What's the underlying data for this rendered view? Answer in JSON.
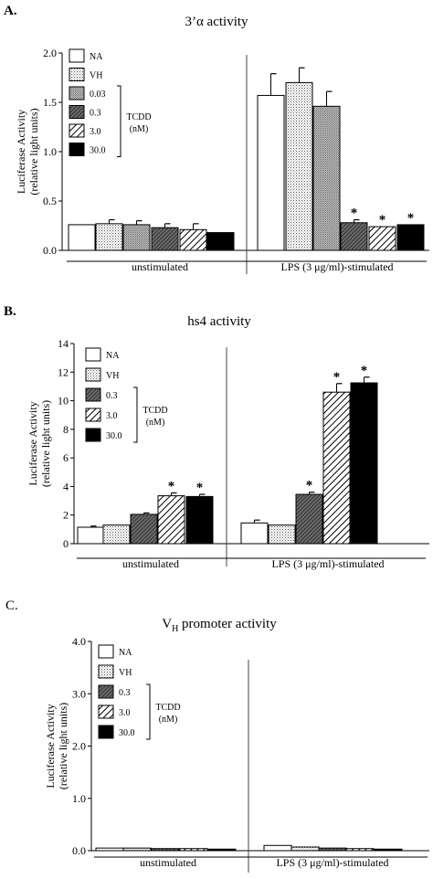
{
  "chart_data": [
    {
      "panel_label": "A.",
      "type": "bar",
      "title": "3’α activity",
      "ylabel_lines": [
        "Luciferase Activity",
        "(relative light units)"
      ],
      "ylim": [
        0,
        2.0
      ],
      "yticks": [
        "0.0",
        "0.5",
        "1.0",
        "1.5",
        "2.0"
      ],
      "groups": [
        "unstimulated",
        "LPS (3 μg/ml)-stimulated"
      ],
      "series": [
        {
          "name": "NA",
          "pattern": "white",
          "values": [
            0.26,
            1.57
          ],
          "errors": [
            0.0,
            0.22
          ],
          "sig": [
            false,
            false
          ]
        },
        {
          "name": "VH",
          "pattern": "dots",
          "values": [
            0.27,
            1.7
          ],
          "errors": [
            0.04,
            0.15
          ],
          "sig": [
            false,
            false
          ]
        },
        {
          "name": "0.03",
          "pattern": "dense",
          "values": [
            0.26,
            1.46
          ],
          "errors": [
            0.04,
            0.15
          ],
          "sig": [
            false,
            false
          ]
        },
        {
          "name": "0.3",
          "pattern": "dark",
          "values": [
            0.23,
            0.28
          ],
          "errors": [
            0.04,
            0.03
          ],
          "sig": [
            false,
            true
          ]
        },
        {
          "name": "3.0",
          "pattern": "hatch",
          "values": [
            0.21,
            0.24
          ],
          "errors": [
            0.06,
            0.0
          ],
          "sig": [
            false,
            true
          ]
        },
        {
          "name": "30.0",
          "pattern": "black",
          "values": [
            0.18,
            0.26
          ],
          "errors": [
            0.0,
            0.0
          ],
          "sig": [
            false,
            true
          ]
        }
      ],
      "legend_bracket_label": [
        "TCDD",
        "(nM)"
      ],
      "bracket_from": "0.03",
      "grid": false
    },
    {
      "panel_label": "B.",
      "type": "bar",
      "title": "hs4 activity",
      "ylabel_lines": [
        "Luciferase Activity",
        "(relative light units)"
      ],
      "ylim": [
        0,
        14
      ],
      "yticks": [
        "0",
        "2",
        "4",
        "6",
        "8",
        "10",
        "12",
        "14"
      ],
      "groups": [
        "unstimulated",
        "LPS (3 μg/ml)-stimulated"
      ],
      "series": [
        {
          "name": "NA",
          "pattern": "white",
          "values": [
            1.15,
            1.45
          ],
          "errors": [
            0.08,
            0.2
          ],
          "sig": [
            false,
            false
          ]
        },
        {
          "name": "VH",
          "pattern": "dots",
          "values": [
            1.3,
            1.3
          ],
          "errors": [
            0.0,
            0.0
          ],
          "sig": [
            false,
            false
          ]
        },
        {
          "name": "0.3",
          "pattern": "dark",
          "values": [
            2.05,
            3.45
          ],
          "errors": [
            0.1,
            0.15
          ],
          "sig": [
            false,
            true
          ]
        },
        {
          "name": "3.0",
          "pattern": "hatch",
          "values": [
            3.35,
            10.6
          ],
          "errors": [
            0.2,
            0.6
          ],
          "sig": [
            true,
            true
          ]
        },
        {
          "name": "30.0",
          "pattern": "black",
          "values": [
            3.3,
            11.25
          ],
          "errors": [
            0.15,
            0.4
          ],
          "sig": [
            true,
            true
          ]
        }
      ],
      "legend_bracket_label": [
        "TCDD",
        "(nM)"
      ],
      "bracket_from": "0.3",
      "grid": false
    },
    {
      "panel_label": "C.",
      "type": "bar",
      "title": "V",
      "title_sub": "H",
      "title_rest": " promoter activity",
      "ylabel_lines": [
        "Luciferase Activity",
        "(relative light units)"
      ],
      "ylim": [
        0,
        4.0
      ],
      "yticks": [
        "0.0",
        "1.0",
        "2.0",
        "3.0",
        "4.0"
      ],
      "groups": [
        "unstimulated",
        "LPS (3 μg/ml)-stimulated"
      ],
      "series": [
        {
          "name": "NA",
          "pattern": "white",
          "values": [
            0.05,
            0.1
          ],
          "errors": [
            0.0,
            0.0
          ],
          "sig": [
            false,
            false
          ]
        },
        {
          "name": "VH",
          "pattern": "dots",
          "values": [
            0.05,
            0.07
          ],
          "errors": [
            0.0,
            0.0
          ],
          "sig": [
            false,
            false
          ]
        },
        {
          "name": "0.3",
          "pattern": "dark",
          "values": [
            0.04,
            0.05
          ],
          "errors": [
            0.0,
            0.0
          ],
          "sig": [
            false,
            false
          ]
        },
        {
          "name": "3.0",
          "pattern": "hatch",
          "values": [
            0.04,
            0.04
          ],
          "errors": [
            0.0,
            0.0
          ],
          "sig": [
            false,
            false
          ]
        },
        {
          "name": "30.0",
          "pattern": "black",
          "values": [
            0.03,
            0.03
          ],
          "errors": [
            0.0,
            0.0
          ],
          "sig": [
            false,
            false
          ]
        }
      ],
      "legend_bracket_label": [
        "TCDD",
        "(nM)"
      ],
      "bracket_from": "0.3",
      "grid": false
    }
  ]
}
